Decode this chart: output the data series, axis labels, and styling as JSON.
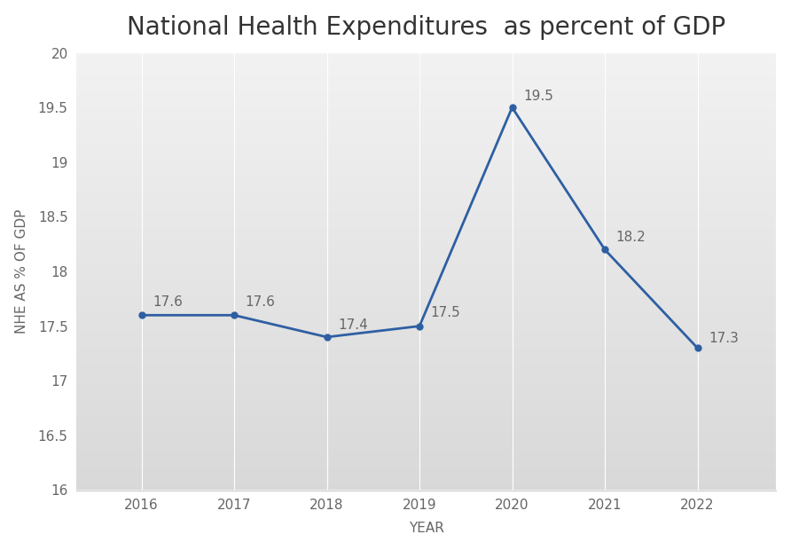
{
  "title": "National Health Expenditures  as percent of GDP",
  "xlabel": "YEAR",
  "ylabel": "NHE AS % OF GDP",
  "years": [
    2016,
    2017,
    2018,
    2019,
    2020,
    2021,
    2022
  ],
  "values": [
    17.6,
    17.6,
    17.4,
    17.5,
    19.5,
    18.2,
    17.3
  ],
  "labels": [
    "17.6",
    "17.6",
    "17.4",
    "17.5",
    "19.5",
    "18.2",
    "17.3"
  ],
  "line_color": "#2E5FA3",
  "line_width": 2.0,
  "marker": "o",
  "marker_size": 5,
  "marker_color": "#2E5FA3",
  "ylim": [
    16,
    20
  ],
  "yticks": [
    16,
    16.5,
    17,
    17.5,
    18,
    18.5,
    19,
    19.5,
    20
  ],
  "fig_background_color": "#FFFFFF",
  "plot_bg_top": "#F2F2F2",
  "plot_bg_bottom": "#D8D8D8",
  "title_fontsize": 20,
  "axis_label_fontsize": 11,
  "tick_fontsize": 11,
  "annotation_fontsize": 11,
  "annotation_color": "#666666",
  "tick_color": "#666666",
  "grid_color": "#FFFFFF",
  "grid_linewidth": 0.8,
  "spine_color": "#CCCCCC"
}
